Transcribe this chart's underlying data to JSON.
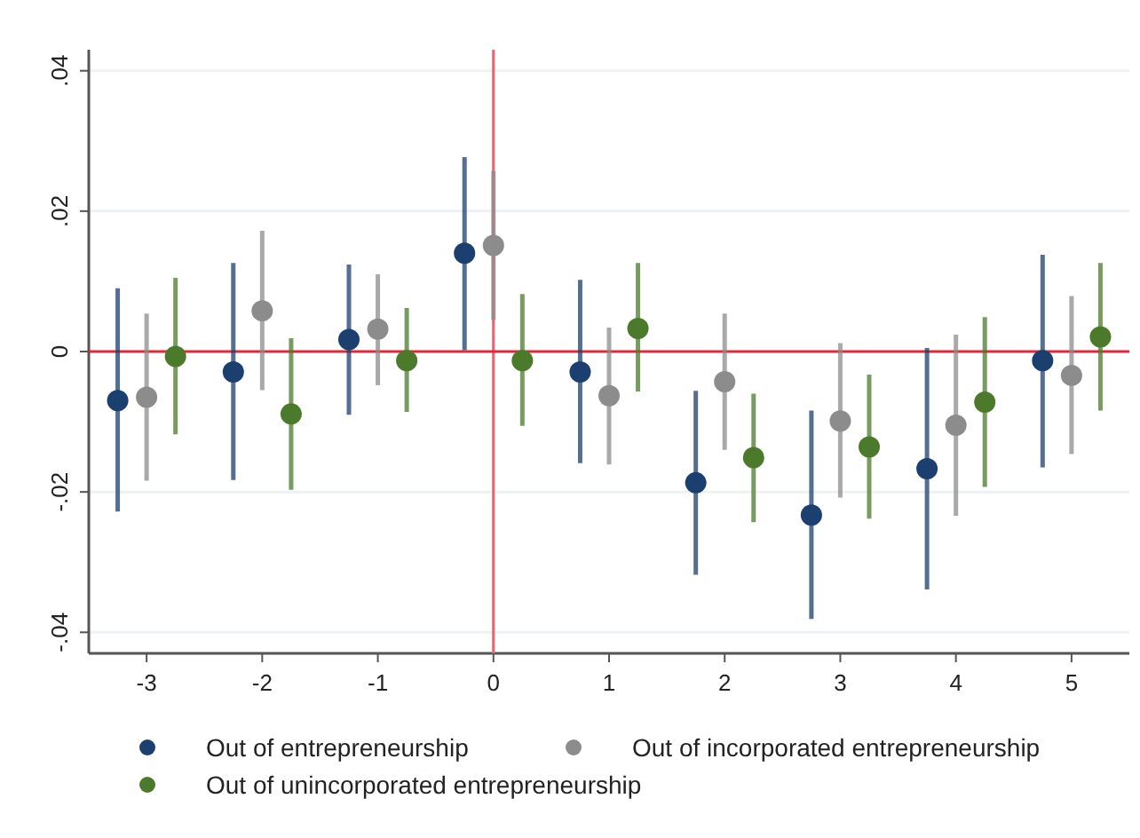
{
  "chart_data": {
    "type": "scatter",
    "xlim": [
      -3.5,
      5.5
    ],
    "xticks": [
      -3,
      -2,
      -1,
      0,
      1,
      2,
      3,
      4,
      5
    ],
    "ylim": [
      -0.043,
      0.043
    ],
    "yticks": [
      {
        "value": -0.04,
        "label": "-.04"
      },
      {
        "value": -0.02,
        "label": "-.02"
      },
      {
        "value": 0,
        "label": "0"
      },
      {
        "value": 0.02,
        "label": ".02"
      },
      {
        "value": 0.04,
        "label": ".04"
      }
    ],
    "grid": "y",
    "legend": "bottom",
    "marker": "circle",
    "ref_lines": [
      {
        "axis": "x",
        "value": 0,
        "color": "#e26a78"
      },
      {
        "axis": "y",
        "value": 0,
        "color": "#e0283a"
      }
    ],
    "series": [
      {
        "name": "Out of entrepreneurship",
        "color": "#1b3f6e",
        "x": [
          -3.25,
          -2.25,
          -1.25,
          -0.25,
          0.75,
          1.75,
          2.75,
          3.75,
          4.75
        ],
        "values": [
          -0.007,
          -0.0029,
          0.0017,
          0.014,
          -0.0029,
          -0.0187,
          -0.0233,
          -0.0167,
          -0.0013
        ],
        "errors": [
          [
            -0.0228,
            0.009
          ],
          [
            -0.0183,
            0.0126
          ],
          [
            -0.009,
            0.0124
          ],
          [
            0.0002,
            0.0277
          ],
          [
            -0.0159,
            0.0102
          ],
          [
            -0.0318,
            -0.0056
          ],
          [
            -0.0381,
            -0.0084
          ],
          [
            -0.0339,
            0.0005
          ],
          [
            -0.0165,
            0.0138
          ]
        ]
      },
      {
        "name": "Out of incorporated entrepreneurship",
        "color": "#8c8c8c",
        "x": [
          -3,
          -2,
          -1,
          0,
          1,
          2,
          3,
          4,
          5
        ],
        "values": [
          -0.0065,
          0.0058,
          0.0032,
          0.0151,
          -0.0063,
          -0.0043,
          -0.0099,
          -0.0105,
          -0.0034
        ],
        "errors": [
          [
            -0.0184,
            0.0054
          ],
          [
            -0.0055,
            0.0172
          ],
          [
            -0.0048,
            0.011
          ],
          [
            0.0045,
            0.0257
          ],
          [
            -0.0161,
            0.0034
          ],
          [
            -0.014,
            0.0054
          ],
          [
            -0.0208,
            0.0012
          ],
          [
            -0.0234,
            0.0024
          ],
          [
            -0.0146,
            0.0079
          ]
        ]
      },
      {
        "name": "Out of unincorporated entrepreneurship",
        "color": "#4b7a2b",
        "x": [
          -2.75,
          -1.75,
          -0.75,
          0.25,
          1.25,
          2.25,
          3.25,
          4.25,
          5.25
        ],
        "values": [
          -0.0007,
          -0.0089,
          -0.0013,
          -0.0013,
          0.0033,
          -0.0151,
          -0.0136,
          -0.0072,
          0.0021
        ],
        "errors": [
          [
            -0.0118,
            0.0105
          ],
          [
            -0.0197,
            0.0019
          ],
          [
            -0.0086,
            0.0062
          ],
          [
            -0.0106,
            0.0082
          ],
          [
            -0.0057,
            0.0126
          ],
          [
            -0.0243,
            -0.006
          ],
          [
            -0.0238,
            -0.0033
          ],
          [
            -0.0193,
            0.0049
          ],
          [
            -0.0084,
            0.0126
          ]
        ]
      }
    ]
  }
}
